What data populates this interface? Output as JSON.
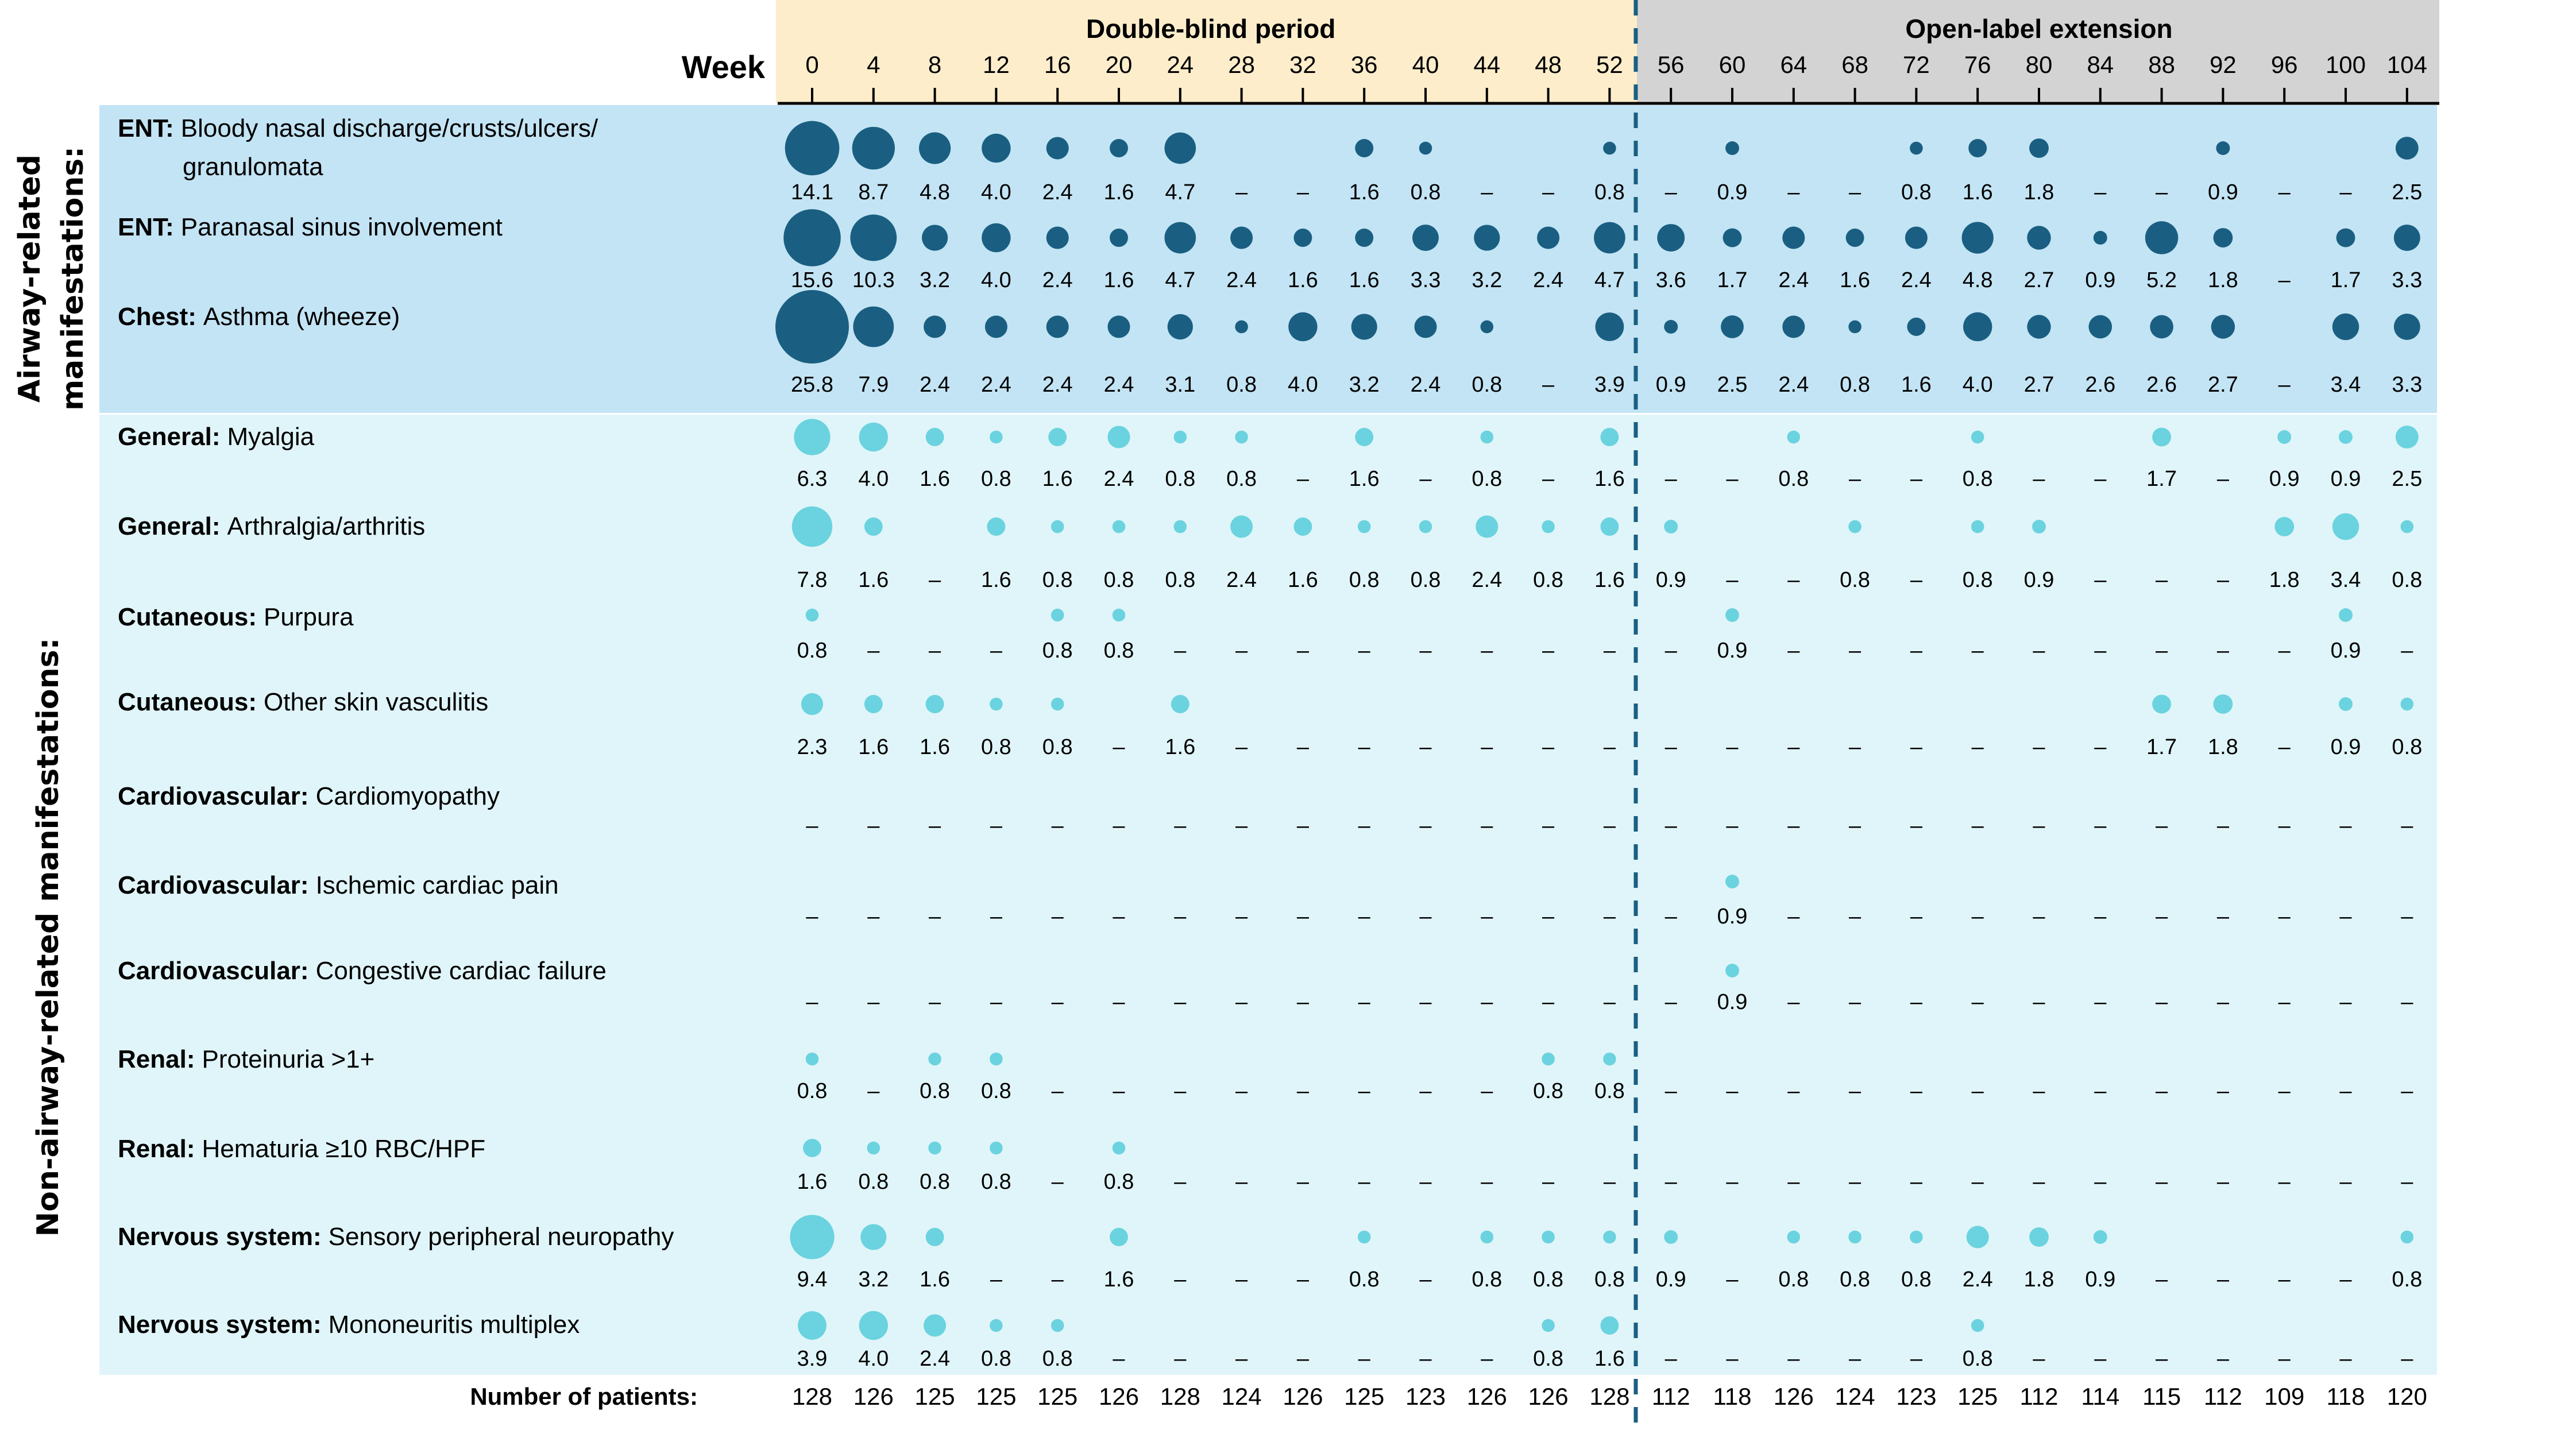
{
  "chart_data": {
    "type": "bubble-table",
    "x_title": "Week",
    "weeks": [
      "0",
      "4",
      "8",
      "12",
      "16",
      "20",
      "24",
      "28",
      "32",
      "36",
      "40",
      "44",
      "48",
      "52",
      "56",
      "60",
      "64",
      "68",
      "72",
      "76",
      "80",
      "84",
      "88",
      "92",
      "96",
      "100",
      "104"
    ],
    "periods": [
      {
        "name": "Double-blind period",
        "from_week": "0",
        "to_week": "52",
        "color": "#FDEDCB"
      },
      {
        "name": "Open-label extension",
        "from_week": "56",
        "to_week": "104",
        "color": "#D3D3D3"
      }
    ],
    "groups": [
      {
        "label_lines": [
          "Airway-related",
          "manifestations:"
        ],
        "background": "#C3E4F4",
        "dot_color": "#1A5F82",
        "rows": [
          {
            "category": "ENT:",
            "name_lines": [
              "Bloody nasal discharge/crusts/ulcers/",
              "granulomata"
            ],
            "values": [
              "14.1",
              "8.7",
              "4.8",
              "4.0",
              "2.4",
              "1.6",
              "4.7",
              "–",
              "–",
              "1.6",
              "0.8",
              "–",
              "–",
              "0.8",
              "–",
              "0.9",
              "–",
              "–",
              "0.8",
              "1.6",
              "1.8",
              "–",
              "–",
              "0.9",
              "–",
              "–",
              "2.5"
            ]
          },
          {
            "category": "ENT:",
            "name_lines": [
              "Paranasal sinus involvement"
            ],
            "values": [
              "15.6",
              "10.3",
              "3.2",
              "4.0",
              "2.4",
              "1.6",
              "4.7",
              "2.4",
              "1.6",
              "1.6",
              "3.3",
              "3.2",
              "2.4",
              "4.7",
              "3.6",
              "1.7",
              "2.4",
              "1.6",
              "2.4",
              "4.8",
              "2.7",
              "0.9",
              "5.2",
              "1.8",
              "–",
              "1.7",
              "3.3"
            ]
          },
          {
            "category": "Chest:",
            "name_lines": [
              "Asthma (wheeze)"
            ],
            "values": [
              "25.8",
              "7.9",
              "2.4",
              "2.4",
              "2.4",
              "2.4",
              "3.1",
              "0.8",
              "4.0",
              "3.2",
              "2.4",
              "0.8",
              "–",
              "3.9",
              "0.9",
              "2.5",
              "2.4",
              "0.8",
              "1.6",
              "4.0",
              "2.7",
              "2.6",
              "2.6",
              "2.7",
              "–",
              "3.4",
              "3.3"
            ]
          }
        ]
      },
      {
        "label_lines": [
          "Non-airway-related manifestations:"
        ],
        "background": "#E0F5F9",
        "dot_color": "#6AD3DF",
        "rows": [
          {
            "category": "General:",
            "name_lines": [
              "Myalgia"
            ],
            "values": [
              "6.3",
              "4.0",
              "1.6",
              "0.8",
              "1.6",
              "2.4",
              "0.8",
              "0.8",
              "–",
              "1.6",
              "–",
              "0.8",
              "–",
              "1.6",
              "–",
              "–",
              "0.8",
              "–",
              "–",
              "0.8",
              "–",
              "–",
              "1.7",
              "–",
              "0.9",
              "0.9",
              "2.5"
            ]
          },
          {
            "category": "General:",
            "name_lines": [
              "Arthralgia/arthritis"
            ],
            "values": [
              "7.8",
              "1.6",
              "–",
              "1.6",
              "0.8",
              "0.8",
              "0.8",
              "2.4",
              "1.6",
              "0.8",
              "0.8",
              "2.4",
              "0.8",
              "1.6",
              "0.9",
              "–",
              "–",
              "0.8",
              "–",
              "0.8",
              "0.9",
              "–",
              "–",
              "–",
              "1.8",
              "3.4",
              "0.8"
            ]
          },
          {
            "category": "Cutaneous:",
            "name_lines": [
              "Purpura"
            ],
            "values": [
              "0.8",
              "–",
              "–",
              "–",
              "0.8",
              "0.8",
              "–",
              "–",
              "–",
              "–",
              "–",
              "–",
              "–",
              "–",
              "–",
              "0.9",
              "–",
              "–",
              "–",
              "–",
              "–",
              "–",
              "–",
              "–",
              "–",
              "0.9",
              "–"
            ]
          },
          {
            "category": "Cutaneous:",
            "name_lines": [
              "Other skin vasculitis"
            ],
            "values": [
              "2.3",
              "1.6",
              "1.6",
              "0.8",
              "0.8",
              "–",
              "1.6",
              "–",
              "–",
              "–",
              "–",
              "–",
              "–",
              "–",
              "–",
              "–",
              "–",
              "–",
              "–",
              "–",
              "–",
              "–",
              "1.7",
              "1.8",
              "–",
              "0.9",
              "0.8"
            ]
          },
          {
            "category": "Cardiovascular:",
            "name_lines": [
              "Cardiomyopathy"
            ],
            "values": [
              "–",
              "–",
              "–",
              "–",
              "–",
              "–",
              "–",
              "–",
              "–",
              "–",
              "–",
              "–",
              "–",
              "–",
              "–",
              "–",
              "–",
              "–",
              "–",
              "–",
              "–",
              "–",
              "–",
              "–",
              "–",
              "–",
              "–"
            ]
          },
          {
            "category": "Cardiovascular:",
            "name_lines": [
              "Ischemic cardiac pain"
            ],
            "values": [
              "–",
              "–",
              "–",
              "–",
              "–",
              "–",
              "–",
              "–",
              "–",
              "–",
              "–",
              "–",
              "–",
              "–",
              "–",
              "0.9",
              "–",
              "–",
              "–",
              "–",
              "–",
              "–",
              "–",
              "–",
              "–",
              "–",
              "–"
            ]
          },
          {
            "category": "Cardiovascular:",
            "name_lines": [
              "Congestive cardiac failure"
            ],
            "values": [
              "–",
              "–",
              "–",
              "–",
              "–",
              "–",
              "–",
              "–",
              "–",
              "–",
              "–",
              "–",
              "–",
              "–",
              "–",
              "0.9",
              "–",
              "–",
              "–",
              "–",
              "–",
              "–",
              "–",
              "–",
              "–",
              "–",
              "–"
            ]
          },
          {
            "category": "Renal:",
            "name_lines": [
              "Proteinuria >1+"
            ],
            "values": [
              "0.8",
              "–",
              "0.8",
              "0.8",
              "–",
              "–",
              "–",
              "–",
              "–",
              "–",
              "–",
              "–",
              "0.8",
              "0.8",
              "–",
              "–",
              "–",
              "–",
              "–",
              "–",
              "–",
              "–",
              "–",
              "–",
              "–",
              "–",
              "–"
            ]
          },
          {
            "category": "Renal:",
            "name_lines": [
              "Hematuria ≥10 RBC/HPF"
            ],
            "values": [
              "1.6",
              "0.8",
              "0.8",
              "0.8",
              "–",
              "0.8",
              "–",
              "–",
              "–",
              "–",
              "–",
              "–",
              "–",
              "–",
              "–",
              "–",
              "–",
              "–",
              "–",
              "–",
              "–",
              "–",
              "–",
              "–",
              "–",
              "–",
              "–"
            ]
          },
          {
            "category": "Nervous system:",
            "name_lines": [
              "Sensory peripheral neuropathy"
            ],
            "values": [
              "9.4",
              "3.2",
              "1.6",
              "–",
              "–",
              "1.6",
              "–",
              "–",
              "–",
              "0.8",
              "–",
              "0.8",
              "0.8",
              "0.8",
              "0.9",
              "–",
              "0.8",
              "0.8",
              "0.8",
              "2.4",
              "1.8",
              "0.9",
              "–",
              "–",
              "–",
              "–",
              "0.8"
            ]
          },
          {
            "category": "Nervous system:",
            "name_lines": [
              "Mononeuritis multiplex"
            ],
            "values": [
              "3.9",
              "4.0",
              "2.4",
              "0.8",
              "0.8",
              "–",
              "–",
              "–",
              "–",
              "–",
              "–",
              "–",
              "0.8",
              "1.6",
              "–",
              "–",
              "–",
              "–",
              "–",
              "0.8",
              "–",
              "–",
              "–",
              "–",
              "–",
              "–",
              "–"
            ]
          }
        ]
      }
    ],
    "patients_label": "Number of patients:",
    "patients": [
      "128",
      "126",
      "125",
      "125",
      "125",
      "126",
      "128",
      "124",
      "126",
      "125",
      "123",
      "126",
      "126",
      "128",
      "112",
      "118",
      "126",
      "124",
      "123",
      "125",
      "112",
      "114",
      "115",
      "112",
      "109",
      "118",
      "120"
    ],
    "divider_color": "#1A5F82"
  }
}
